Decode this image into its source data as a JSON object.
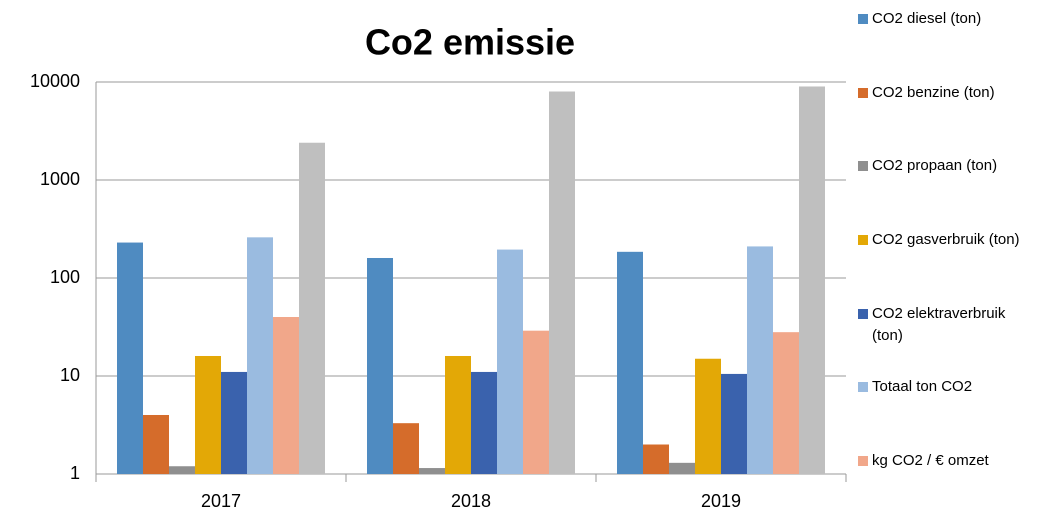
{
  "chart_data": {
    "type": "bar",
    "title": "Co2 emissie",
    "log": true,
    "grid": true,
    "categories": [
      "2017",
      "2018",
      "2019"
    ],
    "series": [
      {
        "name": "CO2 diesel (ton)",
        "color": "#4f8bc1",
        "values": [
          230,
          160,
          185
        ]
      },
      {
        "name": "CO2 benzine (ton)",
        "color": "#d56c2b",
        "values": [
          4,
          3.3,
          2
        ]
      },
      {
        "name": "CO2 propaan (ton)",
        "color": "#8f8f8f",
        "values": [
          1.2,
          1.15,
          1.3
        ]
      },
      {
        "name": "CO2 gasverbruik (ton)",
        "color": "#e3a806",
        "values": [
          16,
          16,
          15
        ]
      },
      {
        "name": "CO2 elektraverbruik (ton)",
        "color": "#3a62ad",
        "values": [
          11,
          11,
          10.5
        ]
      },
      {
        "name": "Totaal ton CO2",
        "color": "#9abbe0",
        "values": [
          260,
          195,
          210
        ]
      },
      {
        "name": "kg CO2 / € omzet",
        "color": "#f1a78a",
        "values": [
          40,
          29,
          28
        ]
      },
      {
        "name": null,
        "color": "#bfbfbf",
        "values": [
          2400,
          8000,
          9000
        ]
      }
    ],
    "ylim": [
      1,
      10000
    ],
    "yticks": [
      1,
      10,
      100,
      1000,
      10000
    ]
  }
}
